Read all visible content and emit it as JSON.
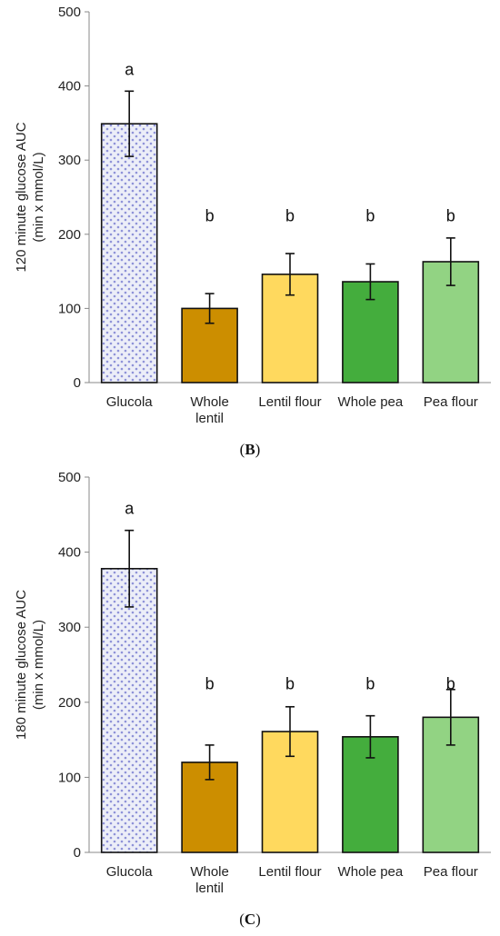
{
  "chart_data": [
    {
      "type": "bar",
      "panel": "B",
      "categories": [
        "Glucola",
        "Whole\nlentil",
        "Lentil flour",
        "Whole pea",
        "Pea flour"
      ],
      "values": [
        349,
        100,
        146,
        136,
        163
      ],
      "errors": [
        44,
        20,
        28,
        24,
        32
      ],
      "significance": [
        "a",
        "b",
        "b",
        "b",
        "b"
      ],
      "ylabel": "120 minute glucose AUC\n(min x mmol/L)",
      "xlabel": "",
      "ylim": [
        0,
        500
      ],
      "yticks": [
        0,
        100,
        200,
        300,
        400,
        500
      ],
      "colors": [
        "#eceef8",
        "#cc8e00",
        "#ffd95e",
        "#44ad3d",
        "#92d383"
      ],
      "patterns": [
        "dots",
        "none",
        "none",
        "none",
        "none"
      ],
      "grid": false
    },
    {
      "type": "bar",
      "panel": "C",
      "categories": [
        "Glucola",
        "Whole\nlentil",
        "Lentil flour",
        "Whole pea",
        "Pea flour"
      ],
      "values": [
        378,
        120,
        161,
        154,
        180
      ],
      "errors": [
        51,
        23,
        33,
        28,
        37
      ],
      "significance": [
        "a",
        "b",
        "b",
        "b",
        "b"
      ],
      "ylabel": "180 minute glucose AUC\n(min x mmol/L)",
      "xlabel": "",
      "ylim": [
        0,
        500
      ],
      "yticks": [
        0,
        100,
        200,
        300,
        400,
        500
      ],
      "colors": [
        "#eceef8",
        "#cc8e00",
        "#ffd95e",
        "#44ad3d",
        "#92d383"
      ],
      "patterns": [
        "dots",
        "none",
        "none",
        "none",
        "none"
      ],
      "grid": false
    }
  ]
}
